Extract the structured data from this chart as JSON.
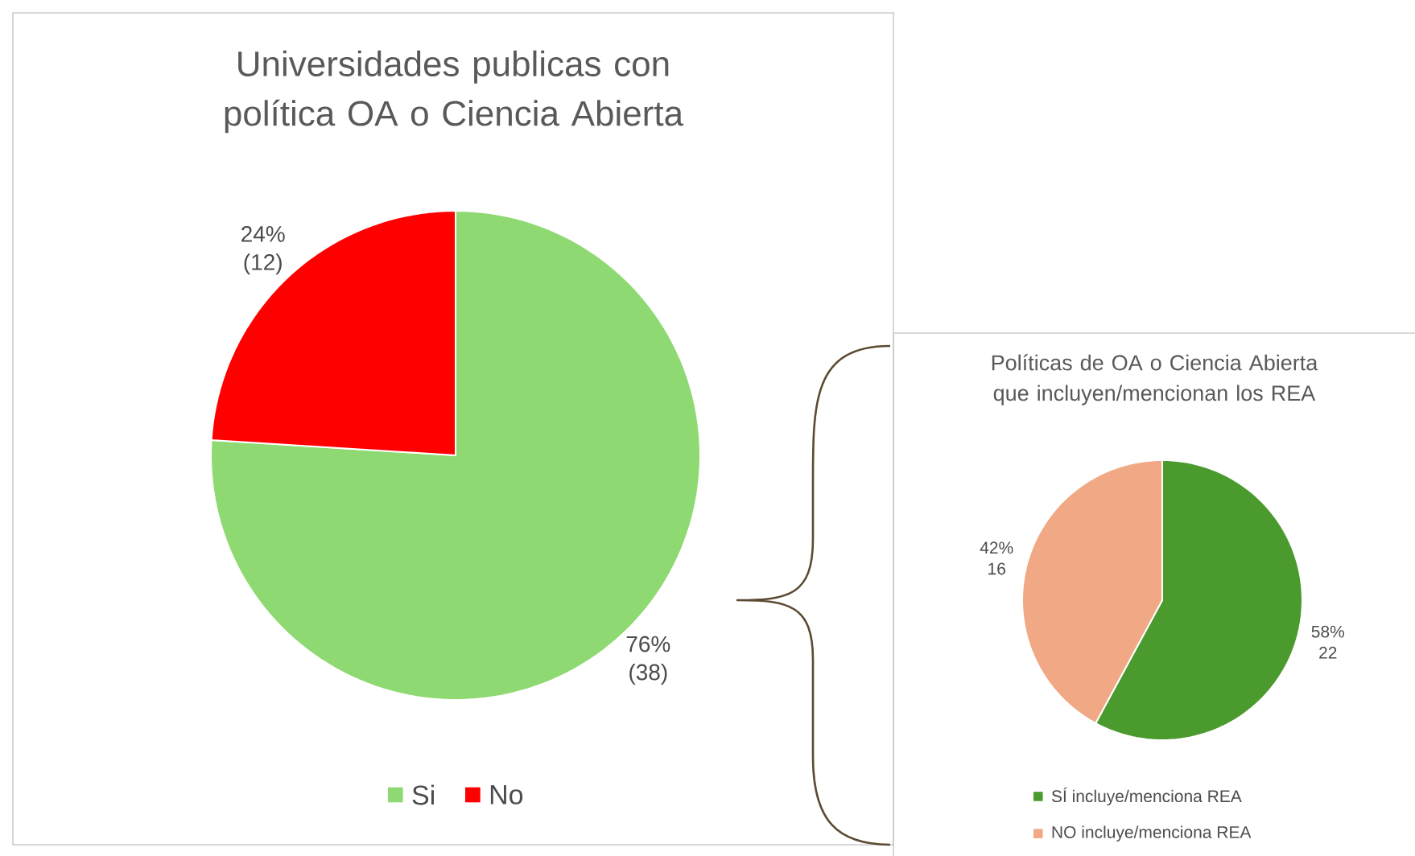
{
  "chart_data": [
    {
      "type": "pie",
      "title": "Universidades publicas con política OA o Ciencia Abierta",
      "categories": [
        "Si",
        "No"
      ],
      "values": [
        38,
        12
      ],
      "colors": [
        "#8fd973",
        "#ff0000"
      ],
      "value_labels": [
        "76% (38)",
        "24% (12)"
      ],
      "legend": "bottom"
    },
    {
      "type": "pie",
      "title": "Políticas de OA o Ciencia Abierta que incluyen/mencionan los REA",
      "categories": [
        "SÍ incluye/menciona REA",
        "NO incluye/menciona REA"
      ],
      "values": [
        22,
        16
      ],
      "colors": [
        "#4a9a2e",
        "#f0a984"
      ],
      "value_labels": [
        "58% 22",
        "42% 16"
      ],
      "legend": "bottom"
    }
  ]
}
